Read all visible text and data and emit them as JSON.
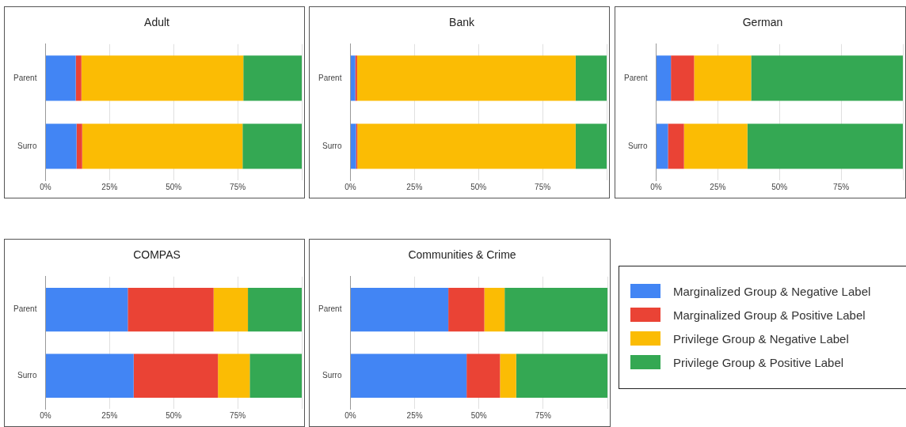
{
  "chart_data": [
    {
      "type": "bar",
      "title": "Adult",
      "orientation": "horizontal",
      "stacked": true,
      "categories": [
        "Parent",
        "Surro"
      ],
      "xlim": [
        0,
        100
      ],
      "xticks": [
        {
          "value": 0,
          "label": "0%"
        },
        {
          "value": 25,
          "label": "25%"
        },
        {
          "value": 50,
          "label": "50%"
        },
        {
          "value": 75,
          "label": "75%"
        },
        {
          "value": 100,
          "label": null
        }
      ],
      "grid": "x",
      "legend": false,
      "series": [
        {
          "color": "#4285f4",
          "values": [
            11.8,
            12.1
          ]
        },
        {
          "color": "#ea4335",
          "values": [
            2.2,
            2.2
          ]
        },
        {
          "color": "#fbbc04",
          "values": [
            63.2,
            62.6
          ]
        },
        {
          "color": "#34a853",
          "values": [
            22.8,
            23.1
          ]
        }
      ]
    },
    {
      "type": "bar",
      "title": "Bank",
      "orientation": "horizontal",
      "stacked": true,
      "categories": [
        "Parent",
        "Surro"
      ],
      "xlim": [
        0,
        100
      ],
      "xticks": [
        {
          "value": 0,
          "label": "0%"
        },
        {
          "value": 25,
          "label": "25%"
        },
        {
          "value": 50,
          "label": "50%"
        },
        {
          "value": 75,
          "label": "75%"
        },
        {
          "value": 100,
          "label": null
        }
      ],
      "grid": "x",
      "legend": false,
      "series": [
        {
          "color": "#4285f4",
          "values": [
            1.9,
            2.2
          ]
        },
        {
          "color": "#ea4335",
          "values": [
            0.7,
            0.5
          ]
        },
        {
          "color": "#fbbc04",
          "values": [
            85.3,
            85.2
          ]
        },
        {
          "color": "#34a853",
          "values": [
            12.1,
            12.1
          ]
        }
      ]
    },
    {
      "type": "bar",
      "title": "German",
      "orientation": "horizontal",
      "stacked": true,
      "categories": [
        "Parent",
        "Surro"
      ],
      "xlim": [
        0,
        100
      ],
      "xticks": [
        {
          "value": 0,
          "label": "0%"
        },
        {
          "value": 25,
          "label": "25%"
        },
        {
          "value": 50,
          "label": "50%"
        },
        {
          "value": 75,
          "label": "75%"
        },
        {
          "value": 100,
          "label": null
        }
      ],
      "grid": "x",
      "legend": false,
      "series": [
        {
          "color": "#4285f4",
          "values": [
            6.0,
            4.8
          ]
        },
        {
          "color": "#ea4335",
          "values": [
            9.4,
            6.5
          ]
        },
        {
          "color": "#fbbc04",
          "values": [
            23.1,
            25.7
          ]
        },
        {
          "color": "#34a853",
          "values": [
            61.5,
            63.0
          ]
        }
      ]
    },
    {
      "type": "bar",
      "title": "COMPAS",
      "orientation": "horizontal",
      "stacked": true,
      "categories": [
        "Parent",
        "Surro"
      ],
      "xlim": [
        0,
        100
      ],
      "xticks": [
        {
          "value": 0,
          "label": "0%"
        },
        {
          "value": 25,
          "label": "25%"
        },
        {
          "value": 50,
          "label": "50%"
        },
        {
          "value": 75,
          "label": "75%"
        },
        {
          "value": 100,
          "label": null
        }
      ],
      "grid": "x",
      "legend": false,
      "series": [
        {
          "color": "#4285f4",
          "values": [
            32.1,
            34.4
          ]
        },
        {
          "color": "#ea4335",
          "values": [
            33.5,
            32.9
          ]
        },
        {
          "color": "#fbbc04",
          "values": [
            13.4,
            12.4
          ]
        },
        {
          "color": "#34a853",
          "values": [
            21.0,
            20.3
          ]
        }
      ]
    },
    {
      "type": "bar",
      "title": "Communities & Crime",
      "orientation": "horizontal",
      "stacked": true,
      "categories": [
        "Parent",
        "Surro"
      ],
      "xlim": [
        0,
        100
      ],
      "xticks": [
        {
          "value": 0,
          "label": "0%"
        },
        {
          "value": 25,
          "label": "25%"
        },
        {
          "value": 50,
          "label": "50%"
        },
        {
          "value": 75,
          "label": "75%"
        },
        {
          "value": 100,
          "label": null
        }
      ],
      "grid": "x",
      "legend": "right",
      "series": [
        {
          "name": "Marginalized Group & Negative Label",
          "color": "#4285f4",
          "values": [
            38.1,
            45.2
          ]
        },
        {
          "name": "Marginalized Group & Positive Label",
          "color": "#ea4335",
          "values": [
            14.0,
            13.0
          ]
        },
        {
          "name": "Privilege Group & Negative Label",
          "color": "#fbbc04",
          "values": [
            7.9,
            6.3
          ]
        },
        {
          "name": "Privilege Group & Positive Label",
          "color": "#34a853",
          "values": [
            40.0,
            35.5
          ]
        }
      ]
    }
  ]
}
